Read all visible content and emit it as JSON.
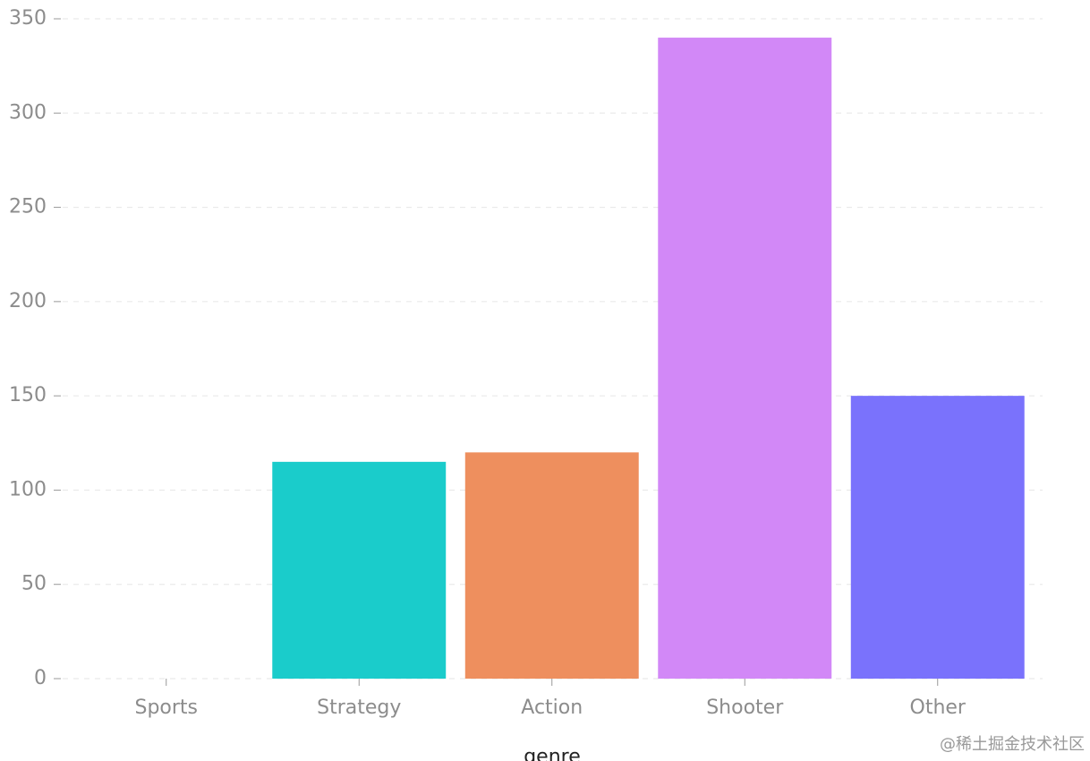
{
  "chart_data": {
    "type": "bar",
    "x_label": "genre",
    "categories": [
      "Sports",
      "Strategy",
      "Action",
      "Shooter",
      "Other"
    ],
    "values": [
      0,
      115,
      120,
      340,
      150
    ],
    "colors": [
      "#5B8FF9",
      "#1ACCCB",
      "#EE8F5E",
      "#D288F7",
      "#7A72FC"
    ],
    "ylim": [
      0,
      350
    ],
    "yticks": [
      0,
      50,
      100,
      150,
      200,
      250,
      300,
      350
    ],
    "grid": true,
    "watermark": "@稀土掘金技术社区"
  }
}
